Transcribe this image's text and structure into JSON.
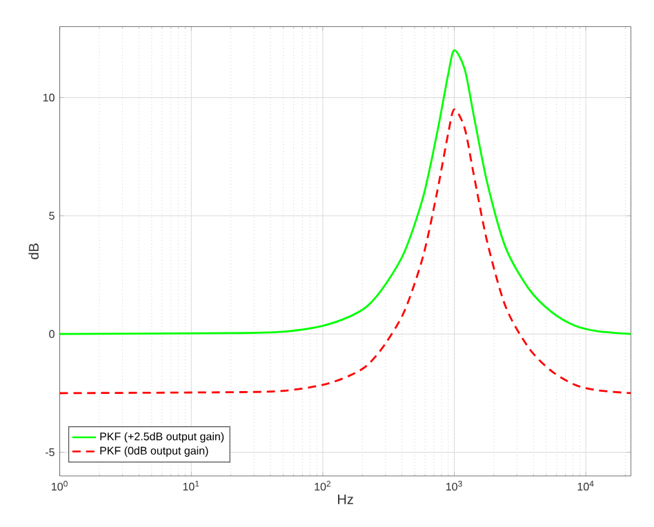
{
  "chart_data": {
    "type": "line",
    "xlabel": "Hz",
    "ylabel": "dB",
    "log": "x",
    "grid": true,
    "legend": "bottom left",
    "xlim": [
      1,
      22050
    ],
    "ylim": [
      -6,
      13
    ],
    "xticks": [
      {
        "value": 1,
        "label": "10$^{0}$"
      },
      {
        "value": 10,
        "label": "10$^{1}$"
      },
      {
        "value": 100,
        "label": "10$^{2}$"
      },
      {
        "value": 1000,
        "label": "10$^{3}$"
      },
      {
        "value": 10000,
        "label": "10$^{4}$"
      }
    ],
    "yticks": [
      -5,
      0,
      5,
      10
    ],
    "x": [
      1,
      20,
      50,
      100,
      160,
      220,
      300,
      420,
      580,
      740,
      900,
      1000,
      1200,
      1400,
      1780,
      2460,
      3700,
      5500,
      8300,
      12300,
      22050
    ],
    "series": [
      {
        "name": "PKF (+2.5dB output gain)",
        "color": "#00ff00",
        "line_style": "solid",
        "values": [
          0,
          0.04,
          0.1,
          0.35,
          0.74,
          1.2,
          2.1,
          3.5,
          5.8,
          8.5,
          11.0,
          12.0,
          11.2,
          9.3,
          6.4,
          3.65,
          1.9,
          0.93,
          0.35,
          0.12,
          0
        ]
      },
      {
        "name": "PKF (0dB output gain)",
        "color": "#ff0000",
        "line_style": "dashed",
        "values": [
          -2.5,
          -2.46,
          -2.4,
          -2.15,
          -1.76,
          -1.3,
          -0.4,
          1.0,
          3.3,
          6.0,
          8.5,
          9.5,
          8.7,
          6.8,
          3.9,
          1.15,
          -0.6,
          -1.57,
          -2.15,
          -2.38,
          -2.5
        ]
      }
    ]
  }
}
